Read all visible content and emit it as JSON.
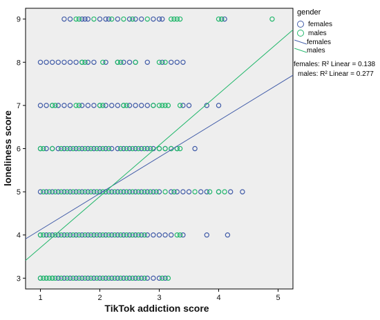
{
  "chart_data": {
    "type": "scatter",
    "title": "",
    "xlabel": "TikTok addiction score",
    "ylabel": "loneliness score",
    "xlim": [
      0.75,
      5.25
    ],
    "ylim": [
      2.75,
      9.25
    ],
    "x_ticks": [
      "1",
      "2",
      "3",
      "4",
      "5"
    ],
    "y_ticks": [
      "3",
      "4",
      "5",
      "6",
      "7",
      "8",
      "9"
    ],
    "grid": false,
    "plot_background": "#eeeeee",
    "legend": {
      "title": "gender",
      "placement": "right",
      "marker_entries": [
        "females",
        "males"
      ],
      "line_entries": [
        "females",
        "males"
      ]
    },
    "series": [
      {
        "name": "females",
        "color": "#3f5aa7",
        "marker": "circle-open",
        "points": [
          [
            1.4,
            9
          ],
          [
            1.5,
            9
          ],
          [
            1.7,
            9
          ],
          [
            1.75,
            9
          ],
          [
            1.8,
            9
          ],
          [
            2.0,
            9
          ],
          [
            2.1,
            9
          ],
          [
            2.15,
            9
          ],
          [
            2.3,
            9
          ],
          [
            2.5,
            9
          ],
          [
            2.6,
            9
          ],
          [
            2.7,
            9
          ],
          [
            2.9,
            9
          ],
          [
            3.0,
            9
          ],
          [
            3.05,
            9
          ],
          [
            4.05,
            9
          ],
          [
            4.1,
            9
          ],
          [
            1.0,
            8
          ],
          [
            1.1,
            8
          ],
          [
            1.2,
            8
          ],
          [
            1.3,
            8
          ],
          [
            1.4,
            8
          ],
          [
            1.5,
            8
          ],
          [
            1.6,
            8
          ],
          [
            1.7,
            8
          ],
          [
            1.8,
            8
          ],
          [
            1.9,
            8
          ],
          [
            2.1,
            8
          ],
          [
            2.3,
            8
          ],
          [
            2.4,
            8
          ],
          [
            2.5,
            8
          ],
          [
            2.6,
            8
          ],
          [
            2.8,
            8
          ],
          [
            3.05,
            8
          ],
          [
            3.2,
            8
          ],
          [
            3.3,
            8
          ],
          [
            3.4,
            8
          ],
          [
            1.0,
            7
          ],
          [
            1.1,
            7
          ],
          [
            1.2,
            7
          ],
          [
            1.3,
            7
          ],
          [
            1.4,
            7
          ],
          [
            1.5,
            7
          ],
          [
            1.7,
            7
          ],
          [
            1.8,
            7
          ],
          [
            1.9,
            7
          ],
          [
            2.0,
            7
          ],
          [
            2.1,
            7
          ],
          [
            2.2,
            7
          ],
          [
            2.3,
            7
          ],
          [
            2.4,
            7
          ],
          [
            2.5,
            7
          ],
          [
            2.6,
            7
          ],
          [
            2.7,
            7
          ],
          [
            2.8,
            7
          ],
          [
            2.9,
            7
          ],
          [
            3.4,
            7
          ],
          [
            3.5,
            7
          ],
          [
            3.8,
            7
          ],
          [
            4.0,
            7
          ],
          [
            1.0,
            6
          ],
          [
            1.1,
            6
          ],
          [
            1.2,
            6
          ],
          [
            1.3,
            6
          ],
          [
            1.4,
            6
          ],
          [
            1.5,
            6
          ],
          [
            1.6,
            6
          ],
          [
            1.7,
            6
          ],
          [
            1.8,
            6
          ],
          [
            1.9,
            6
          ],
          [
            2.0,
            6
          ],
          [
            2.1,
            6
          ],
          [
            2.2,
            6
          ],
          [
            2.3,
            6
          ],
          [
            2.4,
            6
          ],
          [
            2.5,
            6
          ],
          [
            2.6,
            6
          ],
          [
            2.7,
            6
          ],
          [
            2.8,
            6
          ],
          [
            2.9,
            6
          ],
          [
            3.0,
            6
          ],
          [
            3.1,
            6
          ],
          [
            3.2,
            6
          ],
          [
            3.3,
            6
          ],
          [
            3.6,
            6
          ],
          [
            1.0,
            5
          ],
          [
            1.1,
            5
          ],
          [
            1.2,
            5
          ],
          [
            1.3,
            5
          ],
          [
            1.4,
            5
          ],
          [
            1.5,
            5
          ],
          [
            1.6,
            5
          ],
          [
            1.7,
            5
          ],
          [
            1.8,
            5
          ],
          [
            1.9,
            5
          ],
          [
            2.0,
            5
          ],
          [
            2.1,
            5
          ],
          [
            2.2,
            5
          ],
          [
            2.3,
            5
          ],
          [
            2.4,
            5
          ],
          [
            2.5,
            5
          ],
          [
            2.6,
            5
          ],
          [
            2.7,
            5
          ],
          [
            2.8,
            5
          ],
          [
            2.9,
            5
          ],
          [
            3.0,
            5
          ],
          [
            3.2,
            5
          ],
          [
            3.3,
            5
          ],
          [
            3.4,
            5
          ],
          [
            3.5,
            5
          ],
          [
            3.7,
            5
          ],
          [
            3.8,
            5
          ],
          [
            4.0,
            5
          ],
          [
            4.2,
            5
          ],
          [
            4.4,
            5
          ],
          [
            1.0,
            4
          ],
          [
            1.1,
            4
          ],
          [
            1.2,
            4
          ],
          [
            1.3,
            4
          ],
          [
            1.4,
            4
          ],
          [
            1.5,
            4
          ],
          [
            1.6,
            4
          ],
          [
            1.7,
            4
          ],
          [
            1.8,
            4
          ],
          [
            1.9,
            4
          ],
          [
            2.0,
            4
          ],
          [
            2.1,
            4
          ],
          [
            2.2,
            4
          ],
          [
            2.3,
            4
          ],
          [
            2.4,
            4
          ],
          [
            2.5,
            4
          ],
          [
            2.6,
            4
          ],
          [
            2.7,
            4
          ],
          [
            2.8,
            4
          ],
          [
            2.9,
            4
          ],
          [
            3.0,
            4
          ],
          [
            3.1,
            4
          ],
          [
            3.2,
            4
          ],
          [
            3.4,
            4
          ],
          [
            3.8,
            4
          ],
          [
            4.15,
            4
          ],
          [
            1.0,
            3
          ],
          [
            1.1,
            3
          ],
          [
            1.2,
            3
          ],
          [
            1.3,
            3
          ],
          [
            1.4,
            3
          ],
          [
            1.5,
            3
          ],
          [
            1.6,
            3
          ],
          [
            1.7,
            3
          ],
          [
            1.8,
            3
          ],
          [
            1.9,
            3
          ],
          [
            2.0,
            3
          ],
          [
            2.1,
            3
          ],
          [
            2.2,
            3
          ],
          [
            2.3,
            3
          ],
          [
            2.4,
            3
          ],
          [
            2.5,
            3
          ],
          [
            2.6,
            3
          ],
          [
            2.7,
            3
          ],
          [
            2.8,
            3
          ],
          [
            2.9,
            3
          ],
          [
            3.0,
            3
          ],
          [
            3.1,
            3
          ]
        ],
        "fit_line": {
          "x": [
            0.75,
            5.25
          ],
          "y": [
            3.91,
            7.7
          ],
          "r2_label": "females: R² Linear = 0.138"
        }
      },
      {
        "name": "males",
        "color": "#21b76b",
        "marker": "circle-open",
        "points": [
          [
            1.6,
            9
          ],
          [
            1.65,
            9
          ],
          [
            1.9,
            9
          ],
          [
            2.2,
            9
          ],
          [
            2.4,
            9
          ],
          [
            2.55,
            9
          ],
          [
            2.8,
            9
          ],
          [
            3.2,
            9
          ],
          [
            3.25,
            9
          ],
          [
            3.3,
            9
          ],
          [
            3.35,
            9
          ],
          [
            4.0,
            9
          ],
          [
            4.05,
            9
          ],
          [
            4.9,
            9
          ],
          [
            1.7,
            8
          ],
          [
            1.75,
            8
          ],
          [
            2.05,
            8
          ],
          [
            2.3,
            8
          ],
          [
            2.35,
            8
          ],
          [
            2.6,
            8
          ],
          [
            3.0,
            8
          ],
          [
            3.1,
            8
          ],
          [
            1.2,
            7
          ],
          [
            1.25,
            7
          ],
          [
            1.6,
            7
          ],
          [
            1.65,
            7
          ],
          [
            2.0,
            7
          ],
          [
            2.05,
            7
          ],
          [
            2.4,
            7
          ],
          [
            2.45,
            7
          ],
          [
            2.9,
            7
          ],
          [
            3.0,
            7
          ],
          [
            3.05,
            7
          ],
          [
            3.1,
            7
          ],
          [
            3.15,
            7
          ],
          [
            3.35,
            7
          ],
          [
            1.0,
            6
          ],
          [
            1.05,
            6
          ],
          [
            1.2,
            6
          ],
          [
            1.35,
            6
          ],
          [
            1.45,
            6
          ],
          [
            1.55,
            6
          ],
          [
            1.65,
            6
          ],
          [
            1.75,
            6
          ],
          [
            1.85,
            6
          ],
          [
            1.95,
            6
          ],
          [
            2.05,
            6
          ],
          [
            2.15,
            6
          ],
          [
            2.35,
            6
          ],
          [
            2.45,
            6
          ],
          [
            2.55,
            6
          ],
          [
            2.65,
            6
          ],
          [
            2.75,
            6
          ],
          [
            2.85,
            6
          ],
          [
            3.0,
            6
          ],
          [
            3.1,
            6
          ],
          [
            3.2,
            6
          ],
          [
            3.3,
            6
          ],
          [
            3.35,
            6
          ],
          [
            1.05,
            5
          ],
          [
            1.15,
            5
          ],
          [
            1.25,
            5
          ],
          [
            1.35,
            5
          ],
          [
            1.45,
            5
          ],
          [
            1.55,
            5
          ],
          [
            1.65,
            5
          ],
          [
            1.75,
            5
          ],
          [
            1.85,
            5
          ],
          [
            1.95,
            5
          ],
          [
            2.05,
            5
          ],
          [
            2.15,
            5
          ],
          [
            2.25,
            5
          ],
          [
            2.35,
            5
          ],
          [
            2.45,
            5
          ],
          [
            2.55,
            5
          ],
          [
            2.65,
            5
          ],
          [
            2.75,
            5
          ],
          [
            2.85,
            5
          ],
          [
            2.95,
            5
          ],
          [
            3.1,
            5
          ],
          [
            3.25,
            5
          ],
          [
            3.6,
            5
          ],
          [
            3.85,
            5
          ],
          [
            4.0,
            5
          ],
          [
            4.1,
            5
          ],
          [
            1.0,
            4
          ],
          [
            1.05,
            4
          ],
          [
            1.15,
            4
          ],
          [
            1.25,
            4
          ],
          [
            1.35,
            4
          ],
          [
            1.45,
            4
          ],
          [
            1.55,
            4
          ],
          [
            1.65,
            4
          ],
          [
            1.75,
            4
          ],
          [
            1.85,
            4
          ],
          [
            1.95,
            4
          ],
          [
            2.05,
            4
          ],
          [
            2.15,
            4
          ],
          [
            2.25,
            4
          ],
          [
            2.35,
            4
          ],
          [
            2.45,
            4
          ],
          [
            2.55,
            4
          ],
          [
            2.65,
            4
          ],
          [
            2.75,
            4
          ],
          [
            3.3,
            4
          ],
          [
            3.35,
            4
          ],
          [
            1.0,
            3
          ],
          [
            1.05,
            3
          ],
          [
            1.1,
            3
          ],
          [
            1.15,
            3
          ],
          [
            1.2,
            3
          ],
          [
            1.25,
            3
          ],
          [
            1.35,
            3
          ],
          [
            1.45,
            3
          ],
          [
            1.55,
            3
          ],
          [
            1.65,
            3
          ],
          [
            1.75,
            3
          ],
          [
            1.85,
            3
          ],
          [
            1.95,
            3
          ],
          [
            2.05,
            3
          ],
          [
            2.15,
            3
          ],
          [
            2.25,
            3
          ],
          [
            2.35,
            3
          ],
          [
            2.45,
            3
          ],
          [
            2.55,
            3
          ],
          [
            2.65,
            3
          ],
          [
            2.75,
            3
          ],
          [
            3.05,
            3
          ],
          [
            3.15,
            3
          ]
        ],
        "fit_line": {
          "x": [
            0.75,
            5.25
          ],
          "y": [
            3.41,
            8.75
          ],
          "r2_label": "males: R² Linear = 0.277"
        }
      }
    ]
  }
}
